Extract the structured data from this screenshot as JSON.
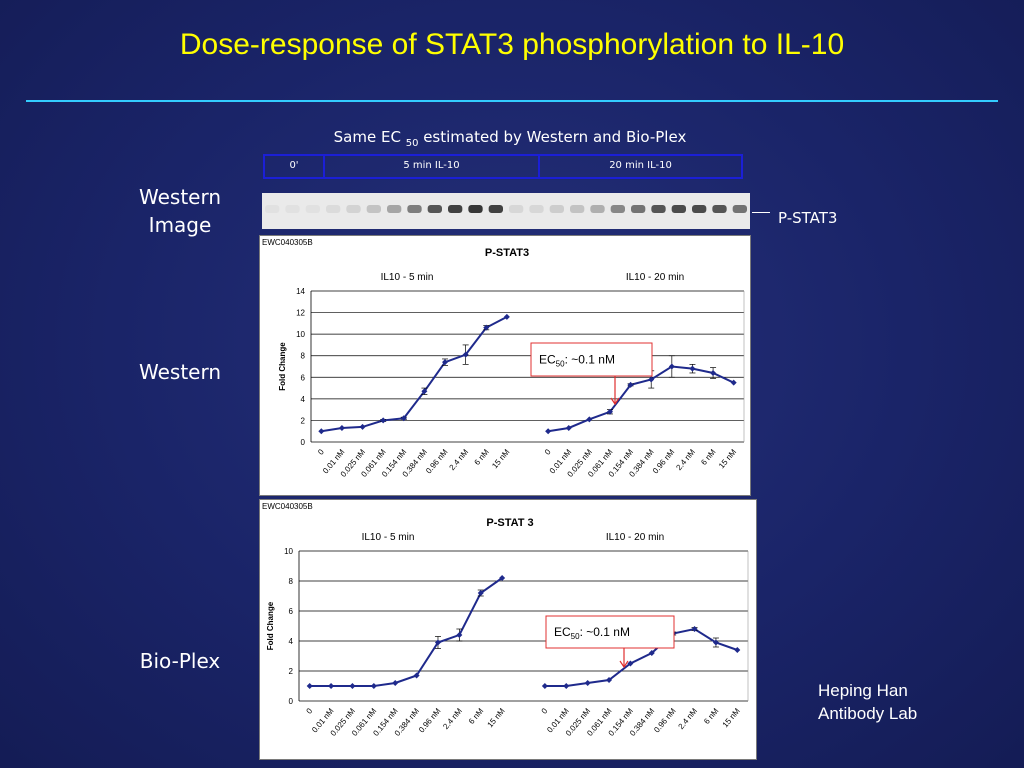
{
  "title": "Dose-response of STAT3 phosphorylation to IL-10",
  "subtitle": {
    "pre": "Same EC ",
    "sub": "50",
    "post": " estimated by Western and Bio-Plex"
  },
  "gel_header": {
    "t0": "0'",
    "t5": "5 min     IL-10",
    "t20": "20 min    IL-10"
  },
  "side_labels": {
    "image": "Western\nImage",
    "western": "Western",
    "bioplex": "Bio-Plex"
  },
  "gel_band_label": "P-STAT3",
  "credits": {
    "line1": "Heping Han",
    "line2": "Antibody Lab"
  },
  "colors": {
    "accent_title": "#ffff00",
    "rule": "#33ccff",
    "series": "#1f2a8c",
    "ec50_box": "#e03030"
  },
  "chart_data": [
    {
      "type": "line",
      "tag": "EWC040305B",
      "title": "P-STAT3",
      "ylabel": "Fold Change",
      "ylim": [
        0,
        14
      ],
      "yticks": [
        0,
        2,
        4,
        6,
        8,
        10,
        12,
        14
      ],
      "categories": [
        "0",
        "0.01 nM",
        "0.025 nM",
        "0.061 nM",
        "0.154 nM",
        "0.384 nM",
        "0.96 nM",
        "2.4 nM",
        "6 nM",
        "15 nM"
      ],
      "annotation": {
        "pre": "EC",
        "sub": "50",
        "post": ": ~0.1 nM"
      },
      "series": [
        {
          "name": "IL10 - 5 min",
          "values": [
            1.0,
            1.3,
            1.4,
            2.0,
            2.2,
            4.7,
            7.4,
            8.1,
            10.6,
            11.6
          ],
          "errors": [
            0,
            0,
            0,
            0.1,
            0.1,
            0.3,
            0.3,
            0.9,
            0.2,
            0
          ]
        },
        {
          "name": "IL10 - 20 min",
          "values": [
            1.0,
            1.3,
            2.1,
            2.8,
            5.3,
            5.8,
            7.0,
            6.8,
            6.4,
            5.5
          ],
          "errors": [
            0,
            0,
            0,
            0.2,
            0.1,
            0.8,
            1.0,
            0.4,
            0.5,
            0
          ]
        }
      ]
    },
    {
      "type": "line",
      "tag": "EWC040305B",
      "title": "P-STAT 3",
      "ylabel": "Fold Change",
      "ylim": [
        0,
        10
      ],
      "yticks": [
        0,
        2,
        4,
        6,
        8,
        10
      ],
      "categories": [
        "0",
        "0.01 nM",
        "0.025 nM",
        "0.061 nM",
        "0.154 nM",
        "0.384 nM",
        "0.96 nM",
        "2.4 nM",
        "6 nM",
        "15 nM"
      ],
      "annotation": {
        "pre": "EC",
        "sub": "50",
        "post": ": ~0.1 nM"
      },
      "series": [
        {
          "name": "IL10 - 5 min",
          "values": [
            1.0,
            1.0,
            1.0,
            1.0,
            1.2,
            1.7,
            3.9,
            4.4,
            7.2,
            8.2
          ],
          "errors": [
            0,
            0,
            0,
            0,
            0,
            0,
            0.4,
            0.4,
            0.2,
            0
          ]
        },
        {
          "name": "IL10 - 20 min",
          "values": [
            1.0,
            1.0,
            1.2,
            1.4,
            2.5,
            3.2,
            4.5,
            4.8,
            3.9,
            3.4
          ],
          "errors": [
            0,
            0,
            0,
            0,
            0,
            0,
            0.1,
            0.1,
            0.3,
            0
          ]
        }
      ]
    }
  ]
}
